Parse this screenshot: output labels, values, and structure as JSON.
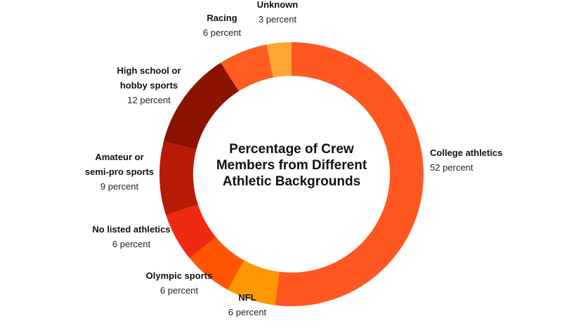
{
  "chart_data": {
    "type": "pie",
    "title": "Percentage of Crew Members from Different Athletic Backgrounds",
    "title_lines": [
      "Percentage of Crew",
      "Members from Different",
      "Athletic Backgrounds"
    ],
    "slices": [
      {
        "name": "College athletics",
        "name_lines": [
          "College athletics"
        ],
        "value": 52,
        "value_label": "52 percent",
        "color": "#FF5722"
      },
      {
        "name": "NFL",
        "name_lines": [
          "NFL"
        ],
        "value": 6,
        "value_label": "6 percent",
        "color": "#FF9800"
      },
      {
        "name": "Olympic sports",
        "name_lines": [
          "Olympic sports"
        ],
        "value": 6,
        "value_label": "6 percent",
        "color": "#FF5500"
      },
      {
        "name": "No listed athletics",
        "name_lines": [
          "No listed athletics"
        ],
        "value": 6,
        "value_label": "6 percent",
        "color": "#EE2A10"
      },
      {
        "name": "Amateur or semi-pro sports",
        "name_lines": [
          "Amateur or",
          "semi-pro sports"
        ],
        "value": 9,
        "value_label": "9 percent",
        "color": "#B81A05"
      },
      {
        "name": "High school or hobby sports",
        "name_lines": [
          "High school or",
          "hobby sports"
        ],
        "value": 12,
        "value_label": "12 percent",
        "color": "#8C1300"
      },
      {
        "name": "Racing",
        "name_lines": [
          "Racing"
        ],
        "value": 6,
        "value_label": "6 percent",
        "color": "#FF5C22"
      },
      {
        "name": "Unknown",
        "name_lines": [
          "Unknown"
        ],
        "value": 3,
        "value_label": "3 percent",
        "color": "#FFA733"
      }
    ],
    "legend": "none",
    "grid": false
  }
}
